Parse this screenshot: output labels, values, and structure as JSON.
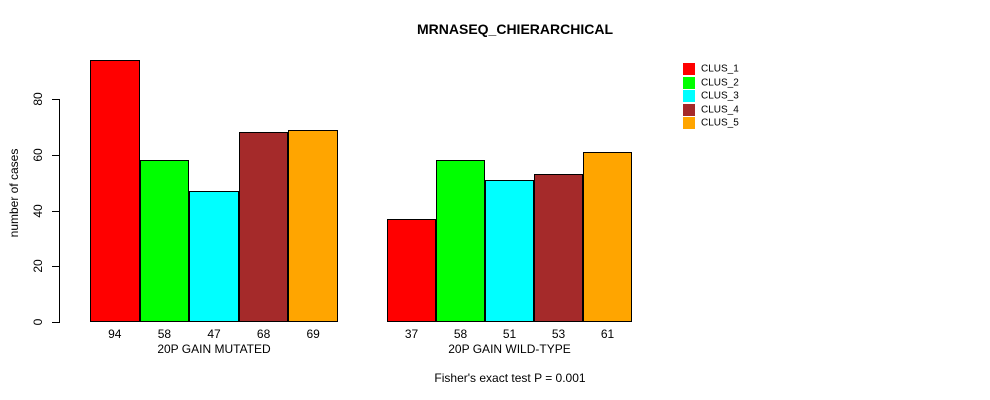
{
  "chart_data": {
    "type": "bar",
    "title": "MRNASEQ_CHIERARCHICAL",
    "ylabel": "number of cases",
    "xlabel": "",
    "ylim": [
      0,
      80
    ],
    "yticks": [
      0,
      20,
      40,
      60,
      80
    ],
    "grid": false,
    "legend_position": "right",
    "bar_value_labels": true,
    "categories": [
      "20P GAIN MUTATED",
      "20P GAIN WILD-TYPE"
    ],
    "series": [
      {
        "name": "CLUS_1",
        "color": "#ff0000",
        "values": [
          94,
          37
        ]
      },
      {
        "name": "CLUS_2",
        "color": "#00ff00",
        "values": [
          58,
          58
        ]
      },
      {
        "name": "CLUS_3",
        "color": "#00ffff",
        "values": [
          47,
          51
        ]
      },
      {
        "name": "CLUS_4",
        "color": "#a52a2a",
        "values": [
          68,
          53
        ]
      },
      {
        "name": "CLUS_5",
        "color": "#ffa500",
        "values": [
          69,
          61
        ]
      }
    ],
    "annotation": "Fisher's exact test P = 0.001"
  },
  "colors": {
    "background": "#ffffff",
    "axis": "#000000",
    "text": "#000000"
  }
}
